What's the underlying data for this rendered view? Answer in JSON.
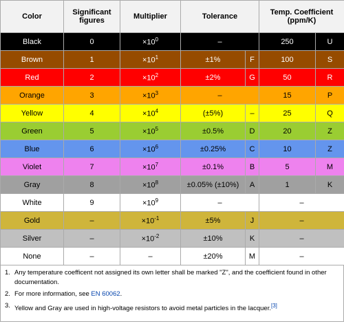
{
  "table": {
    "headers": [
      "Color",
      "Significant figures",
      "Multiplier",
      "Tolerance",
      "Temp. Coefficient (ppm/K)"
    ],
    "rows": [
      {
        "color": "Black",
        "bg": "#000000",
        "fg": "#ffffff",
        "sig": "0",
        "mult": {
          "base": "×10",
          "exp": "0"
        },
        "tol": "–",
        "tol_code": null,
        "temp": "250",
        "temp_code": "U"
      },
      {
        "color": "Brown",
        "bg": "#964b00",
        "fg": "#ffffff",
        "sig": "1",
        "mult": {
          "base": "×10",
          "exp": "1"
        },
        "tol": "±1%",
        "tol_code": "F",
        "temp": "100",
        "temp_code": "S"
      },
      {
        "color": "Red",
        "bg": "#ff0000",
        "fg": "#ffffff",
        "sig": "2",
        "mult": {
          "base": "×10",
          "exp": "2"
        },
        "tol": "±2%",
        "tol_code": "G",
        "temp": "50",
        "temp_code": "R"
      },
      {
        "color": "Orange",
        "bg": "#ffa500",
        "fg": "#000000",
        "sig": "3",
        "mult": {
          "base": "×10",
          "exp": "3"
        },
        "tol": "–",
        "tol_code": null,
        "temp": "15",
        "temp_code": "P"
      },
      {
        "color": "Yellow",
        "bg": "#ffff00",
        "fg": "#000000",
        "sig": "4",
        "mult": {
          "base": "×10",
          "exp": "4"
        },
        "tol": "(±5%)",
        "tol_code": "–",
        "temp": "25",
        "temp_code": "Q"
      },
      {
        "color": "Green",
        "bg": "#9acd32",
        "fg": "#000000",
        "sig": "5",
        "mult": {
          "base": "×10",
          "exp": "5"
        },
        "tol": "±0.5%",
        "tol_code": "D",
        "temp": "20",
        "temp_code": "Z"
      },
      {
        "color": "Blue",
        "bg": "#6495ed",
        "fg": "#000000",
        "sig": "6",
        "mult": {
          "base": "×10",
          "exp": "6"
        },
        "tol": "±0.25%",
        "tol_code": "C",
        "temp": "10",
        "temp_code": "Z"
      },
      {
        "color": "Violet",
        "bg": "#ee82ee",
        "fg": "#000000",
        "sig": "7",
        "mult": {
          "base": "×10",
          "exp": "7"
        },
        "tol": "±0.1%",
        "tol_code": "B",
        "temp": "5",
        "temp_code": "M"
      },
      {
        "color": "Gray",
        "bg": "#a0a0a0",
        "fg": "#000000",
        "sig": "8",
        "mult": {
          "base": "×10",
          "exp": "8"
        },
        "tol": "±0.05% (±10%)",
        "tol_code": "A",
        "temp": "1",
        "temp_code": "K"
      },
      {
        "color": "White",
        "bg": "#ffffff",
        "fg": "#000000",
        "sig": "9",
        "mult": {
          "base": "×10",
          "exp": "9"
        },
        "tol": "–",
        "tol_code": null,
        "temp": "–",
        "temp_code": null
      },
      {
        "color": "Gold",
        "bg": "#cfb53b",
        "fg": "#000000",
        "sig": "–",
        "mult": {
          "base": "×10",
          "exp": "-1"
        },
        "tol": "±5%",
        "tol_code": "J",
        "temp": "–",
        "temp_code": null
      },
      {
        "color": "Silver",
        "bg": "#c0c0c0",
        "fg": "#000000",
        "sig": "–",
        "mult": {
          "base": "×10",
          "exp": "-2"
        },
        "tol": "±10%",
        "tol_code": "K",
        "temp": "–",
        "temp_code": null
      },
      {
        "color": "None",
        "bg": "#ffffff",
        "fg": "#000000",
        "sig": "–",
        "mult": {
          "base": "–",
          "exp": null
        },
        "tol": "±20%",
        "tol_code": "M",
        "temp": "–",
        "temp_code": null
      }
    ]
  },
  "notes": [
    {
      "marker": "1.",
      "text": "Any temperature coefficent not assigned its own letter shall be marked \"Z\", and the coefficient found in other documentation."
    },
    {
      "marker": "2.",
      "text": "For more information, see ",
      "link": "EN 60062",
      "suffix": "."
    },
    {
      "marker": "3.",
      "text": "Yellow and Gray are used in high-voltage resistors to avoid metal particles in the lacquer.",
      "ref": "[3]"
    }
  ]
}
